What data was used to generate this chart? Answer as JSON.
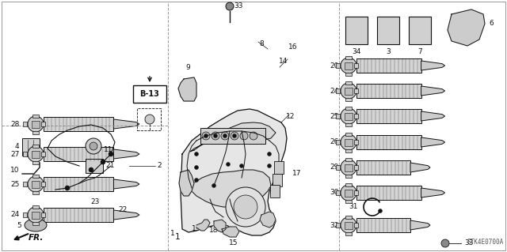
{
  "background_color": "#ffffff",
  "part_code": "STK4E0700A",
  "fr_label": "FR.",
  "b13_label": "B-13",
  "image_color": "#1a1a1a",
  "label_fontsize": 6.5,
  "line_color": "#111111",
  "gray_fill": "#c8c8c8",
  "light_gray": "#e0e0e0",
  "mid_gray": "#aaaaaa"
}
